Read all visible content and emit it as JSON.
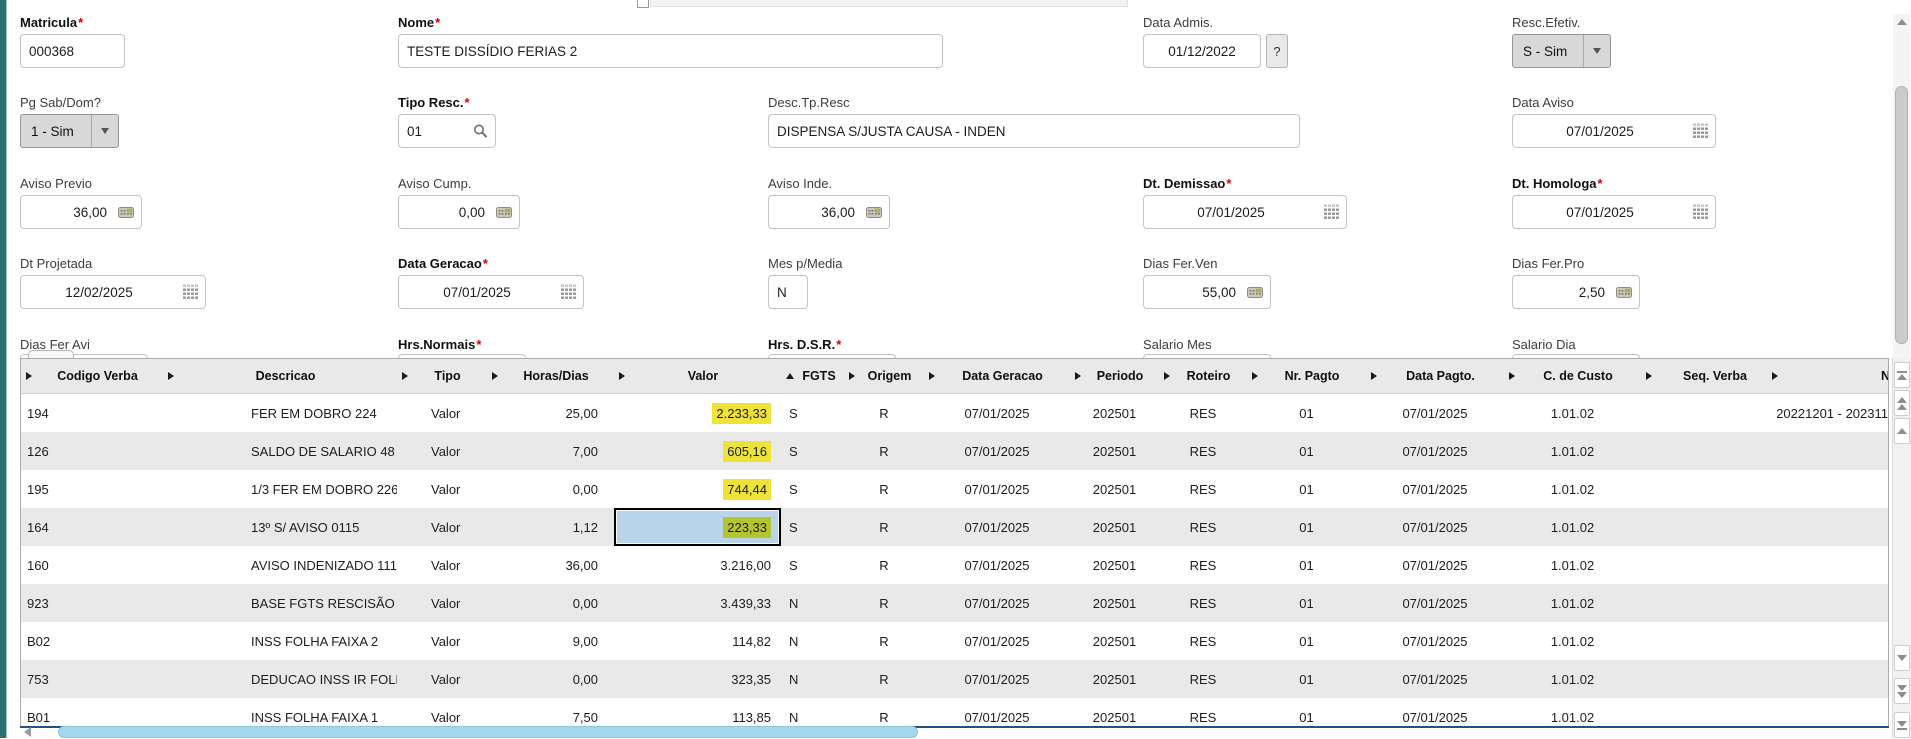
{
  "ui": {
    "required_marker": "*"
  },
  "form": {
    "fields": {
      "matricula": {
        "label": "Matricula",
        "required": true,
        "value": "000368"
      },
      "nome": {
        "label": "Nome",
        "required": true,
        "value": "TESTE DISSÍDIO FERIAS 2"
      },
      "data_admis": {
        "label": "Data Admis.",
        "required": false,
        "value": "01/12/2022",
        "help": "?"
      },
      "resc_efetiv": {
        "label": "Resc.Efetiv.",
        "required": false,
        "value": "S - Sim"
      },
      "pg_sab_dom": {
        "label": "Pg Sab/Dom?",
        "required": false,
        "value": "1 - Sim"
      },
      "tipo_resc": {
        "label": "Tipo Resc.",
        "required": true,
        "value": "01"
      },
      "desc_tp_resc": {
        "label": "Desc.Tp.Resc",
        "required": false,
        "value": "DISPENSA S/JUSTA CAUSA - INDEN"
      },
      "data_aviso": {
        "label": "Data Aviso",
        "required": false,
        "value": "07/01/2025"
      },
      "aviso_previo": {
        "label": "Aviso Previo",
        "required": false,
        "value": "36,00"
      },
      "aviso_cump": {
        "label": "Aviso Cump.",
        "required": false,
        "value": "0,00"
      },
      "aviso_inde": {
        "label": "Aviso Inde.",
        "required": false,
        "value": "36,00"
      },
      "dt_demissao": {
        "label": "Dt. Demissao",
        "required": true,
        "value": "07/01/2025"
      },
      "dt_homologa": {
        "label": "Dt. Homologa",
        "required": true,
        "value": "07/01/2025"
      },
      "dt_projetada": {
        "label": "Dt Projetada",
        "required": false,
        "value": "12/02/2025"
      },
      "data_geracao": {
        "label": "Data Geracao",
        "required": true,
        "value": "07/01/2025"
      },
      "mes_p_media": {
        "label": "Mes p/Media",
        "required": false,
        "value": "N"
      },
      "dias_fer_ven": {
        "label": "Dias Fer.Ven",
        "required": false,
        "value": "55,00"
      },
      "dias_fer_pro": {
        "label": "Dias Fer.Pro",
        "required": false,
        "value": "2,50"
      },
      "dias_fer_avi": {
        "label": "Dias Fer Avi",
        "required": false,
        "value": ""
      },
      "hrs_normais": {
        "label": "Hrs.Normais",
        "required": true,
        "value": ""
      },
      "hrs_dsr": {
        "label": "Hrs. D.S.R.",
        "required": true,
        "value": ""
      },
      "salario_mes": {
        "label": "Salario Mes",
        "required": false,
        "value": ""
      },
      "salario_dia": {
        "label": "Salario Dia",
        "required": false,
        "value": ""
      }
    }
  },
  "grid": {
    "columns": [
      "Codigo Verba",
      "Descricao",
      "Tipo",
      "Horas/Dias",
      "Valor",
      "FGTS",
      "Origem",
      "Data Geracao",
      "Periodo",
      "Roteiro",
      "Nr. Pagto",
      "Data Pagto.",
      "C. de Custo",
      "Seq. Verba"
    ],
    "sorted_by": "Valor",
    "sort_direction": "ascending",
    "partial_next_header": "N",
    "rows": [
      {
        "valor_highlight": "yellow",
        "cells": [
          "194",
          "FER EM DOBRO 224",
          "Valor",
          "25,00",
          "2.233,33",
          "S",
          "R",
          "07/01/2025",
          "202501",
          "RES",
          "01",
          "07/01/2025",
          "1.01.02",
          "20221201 - 202311"
        ]
      },
      {
        "valor_highlight": "yellow",
        "cells": [
          "126",
          "SALDO DE SALARIO 48",
          "Valor",
          "7,00",
          "605,16",
          "S",
          "R",
          "07/01/2025",
          "202501",
          "RES",
          "01",
          "07/01/2025",
          "1.01.02",
          ""
        ]
      },
      {
        "valor_highlight": "yellow",
        "cells": [
          "195",
          "1/3 FER EM DOBRO 226",
          "Valor",
          "0,00",
          "744,44",
          "S",
          "R",
          "07/01/2025",
          "202501",
          "RES",
          "01",
          "07/01/2025",
          "1.01.02",
          ""
        ]
      },
      {
        "valor_highlight": "selected",
        "cells": [
          "164",
          "13º S/ AVISO 0115",
          "Valor",
          "1,12",
          "223,33",
          "S",
          "R",
          "07/01/2025",
          "202501",
          "RES",
          "01",
          "07/01/2025",
          "1.01.02",
          ""
        ]
      },
      {
        "valor_highlight": null,
        "cells": [
          "160",
          "AVISO INDENIZADO 111",
          "Valor",
          "36,00",
          "3.216,00",
          "S",
          "R",
          "07/01/2025",
          "202501",
          "RES",
          "01",
          "07/01/2025",
          "1.01.02",
          ""
        ]
      },
      {
        "valor_highlight": null,
        "cells": [
          "923",
          "BASE FGTS RESCISÃO S",
          "Valor",
          "0,00",
          "3.439,33",
          "N",
          "R",
          "07/01/2025",
          "202501",
          "RES",
          "01",
          "07/01/2025",
          "1.01.02",
          ""
        ]
      },
      {
        "valor_highlight": null,
        "cells": [
          "B02",
          "INSS FOLHA FAIXA 2",
          "Valor",
          "9,00",
          "114,82",
          "N",
          "R",
          "07/01/2025",
          "202501",
          "RES",
          "01",
          "07/01/2025",
          "1.01.02",
          ""
        ]
      },
      {
        "valor_highlight": null,
        "cells": [
          "753",
          "DEDUCAO INSS IR FOLH",
          "Valor",
          "0,00",
          "323,35",
          "N",
          "R",
          "07/01/2025",
          "202501",
          "RES",
          "01",
          "07/01/2025",
          "1.01.02",
          ""
        ]
      },
      {
        "valor_highlight": null,
        "cells": [
          "B01",
          "INSS FOLHA FAIXA 1",
          "Valor",
          "7,50",
          "113,85",
          "N",
          "R",
          "07/01/2025",
          "202501",
          "RES",
          "01",
          "07/01/2025",
          "1.01.02",
          ""
        ]
      }
    ]
  },
  "colors": {
    "accent_teal": "#2a6f70",
    "grid_header_bg": "#e9e9e9",
    "row_alt_bg": "#e9e9e9",
    "highlight_yellow": "#efe33b",
    "highlight_selected": "#b5c531",
    "selected_cell_bg": "#b9d4e9",
    "grid_bottom_border": "#1d5486",
    "hscroll_thumb": "#a5d6ec"
  }
}
